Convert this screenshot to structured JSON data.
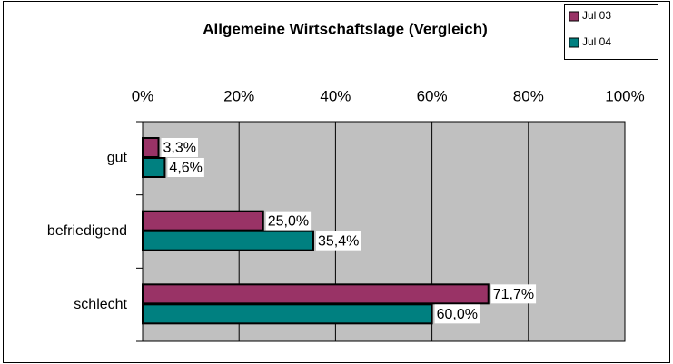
{
  "chart_data": {
    "type": "bar",
    "orientation": "horizontal",
    "title": "Allgemeine Wirtschaftslage (Vergleich)",
    "categories": [
      "gut",
      "befriedigend",
      "schlecht"
    ],
    "series": [
      {
        "name": "Jul 03",
        "color": "#993366",
        "values": [
          3.3,
          25.0,
          71.7
        ],
        "value_labels": [
          "3,3%",
          "25,0%",
          "71,7%"
        ]
      },
      {
        "name": "Jul 04",
        "color": "#008080",
        "values": [
          4.6,
          35.4,
          60.0
        ],
        "value_labels": [
          "4,6%",
          "35,4%",
          "60,0%"
        ]
      }
    ],
    "xlim": [
      0,
      100
    ],
    "xticks": [
      {
        "value": 0,
        "label": "0%"
      },
      {
        "value": 20,
        "label": "20%"
      },
      {
        "value": 40,
        "label": "40%"
      },
      {
        "value": 60,
        "label": "60%"
      },
      {
        "value": 80,
        "label": "80%"
      },
      {
        "value": 100,
        "label": "100%"
      }
    ],
    "grid": true,
    "legend": "top-right"
  }
}
